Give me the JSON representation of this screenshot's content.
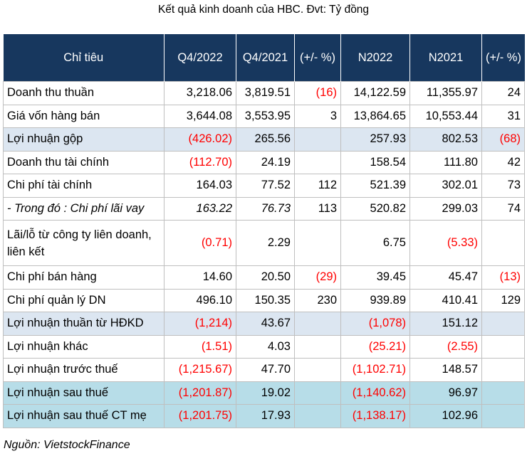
{
  "title": "Kết quả kinh doanh của HBC. Đvt: Tỷ đồng",
  "headers": [
    "Chỉ tiêu",
    "Q4/2022",
    "Q4/2021",
    "(+/- %)",
    "N2022",
    "N2021",
    "(+/- %)"
  ],
  "rows": [
    {
      "cells": [
        "Doanh thu thuần",
        "3,218.06",
        "3,819.51",
        "(16)",
        "14,122.59",
        "11,355.97",
        "24"
      ]
    },
    {
      "cells": [
        "Giá vốn hàng bán",
        "3,644.08",
        "3,553.95",
        "3",
        "13,864.65",
        "10,553.44",
        "31"
      ]
    },
    {
      "cells": [
        "Lợi nhuận gộp",
        "(426.02)",
        "265.56",
        "",
        "257.93",
        "802.53",
        "(68)"
      ]
    },
    {
      "cells": [
        "Doanh thu tài chính",
        "(112.70)",
        "24.19",
        "",
        "158.54",
        "111.80",
        "42"
      ]
    },
    {
      "cells": [
        "Chi phí tài chính",
        "164.03",
        "77.52",
        "112",
        "521.39",
        "302.01",
        "73"
      ]
    },
    {
      "cells": [
        "- Trong đó : Chi phí lãi vay",
        "163.22",
        "76.73",
        "113",
        "520.82",
        "299.03",
        "74"
      ]
    },
    {
      "cells": [
        "Lãi/lỗ từ công ty liên doanh, liên kết",
        "(0.71)",
        "2.29",
        "",
        "6.75",
        "(5.33)",
        ""
      ]
    },
    {
      "cells": [
        "Chi phí bán hàng",
        "14.60",
        "20.50",
        "(29)",
        "39.45",
        "45.47",
        "(13)"
      ]
    },
    {
      "cells": [
        "Chi phí quản lý DN",
        "496.10",
        "150.35",
        "230",
        "939.89",
        "410.41",
        "129"
      ]
    },
    {
      "cells": [
        "Lợi nhuận thuần từ HĐKD",
        "(1,214)",
        "43.67",
        "",
        "(1,078)",
        "151.12",
        ""
      ]
    },
    {
      "cells": [
        "Lợi nhuận khác",
        "(1.51)",
        "4.03",
        "",
        "(25.21)",
        "(2.55)",
        ""
      ]
    },
    {
      "cells": [
        "Lợi nhuận trước thuế",
        "(1,215.67)",
        "47.70",
        "",
        "(1,102.71)",
        "148.57",
        ""
      ]
    },
    {
      "cells": [
        "Lợi nhuận sau thuế",
        "(1,201.87)",
        "19.02",
        "",
        "(1,140.62)",
        "96.97",
        ""
      ]
    },
    {
      "cells": [
        "Lợi nhuận sau thuế CT mẹ",
        "(1,201.75)",
        "17.93",
        "",
        "(1,138.17)",
        "102.96",
        ""
      ]
    }
  ],
  "source": "Nguồn: VietstockFinance",
  "colors": {
    "header_bg": "#17375e",
    "highlight_light": "#dce6f1",
    "highlight_teal": "#b7dde8",
    "negative": "#ff0000",
    "border": "#bfbfbf"
  }
}
